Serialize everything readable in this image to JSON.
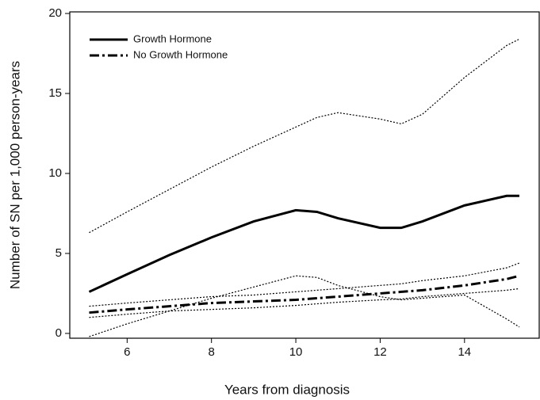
{
  "chart_data": {
    "type": "line",
    "x_label": "Years from diagnosis",
    "y_label": "Number of SN per 1,000 person-years",
    "x": [
      5.1,
      6,
      7,
      8,
      9,
      10,
      10.5,
      11,
      12,
      12.5,
      13,
      14,
      15,
      15.3
    ],
    "series": [
      {
        "name": "Growth Hormone",
        "color": "#000000",
        "style": "solid",
        "values": [
          2.6,
          3.7,
          4.9,
          6.0,
          7.0,
          7.7,
          7.6,
          7.2,
          6.6,
          6.6,
          7.0,
          8.0,
          8.6,
          8.6
        ]
      },
      {
        "name": "No Growth Hormone",
        "color": "#000000",
        "style": "dashdot",
        "values": [
          1.3,
          1.5,
          1.7,
          1.9,
          2.0,
          2.1,
          2.2,
          2.3,
          2.5,
          2.6,
          2.7,
          3.0,
          3.4,
          3.6
        ]
      },
      {
        "color": "#000000",
        "style": "dotted",
        "values": [
          6.3,
          7.6,
          9.0,
          10.4,
          11.7,
          12.9,
          13.5,
          13.8,
          13.4,
          13.1,
          13.7,
          16.0,
          18.0,
          18.4
        ]
      },
      {
        "color": "#000000",
        "style": "dotted",
        "values": [
          -0.2,
          0.6,
          1.4,
          2.2,
          2.9,
          3.6,
          3.5,
          3.0,
          2.3,
          2.1,
          2.2,
          2.4,
          0.9,
          0.4
        ]
      },
      {
        "color": "#000000",
        "style": "dotted",
        "values": [
          1.7,
          1.9,
          2.1,
          2.3,
          2.4,
          2.6,
          2.7,
          2.8,
          3.0,
          3.1,
          3.3,
          3.6,
          4.1,
          4.4
        ]
      },
      {
        "color": "#000000",
        "style": "dotted",
        "values": [
          1.0,
          1.2,
          1.4,
          1.5,
          1.6,
          1.75,
          1.85,
          1.95,
          2.1,
          2.15,
          2.3,
          2.5,
          2.7,
          2.8
        ]
      }
    ],
    "xlim": [
      4.64,
      15.79
    ],
    "xticks": [
      6,
      8,
      10,
      12,
      14
    ],
    "ylim": [
      -0.3,
      20.1
    ],
    "yticks": [
      0,
      5,
      10,
      15,
      20
    ],
    "grid": false,
    "legend": "upper left"
  }
}
